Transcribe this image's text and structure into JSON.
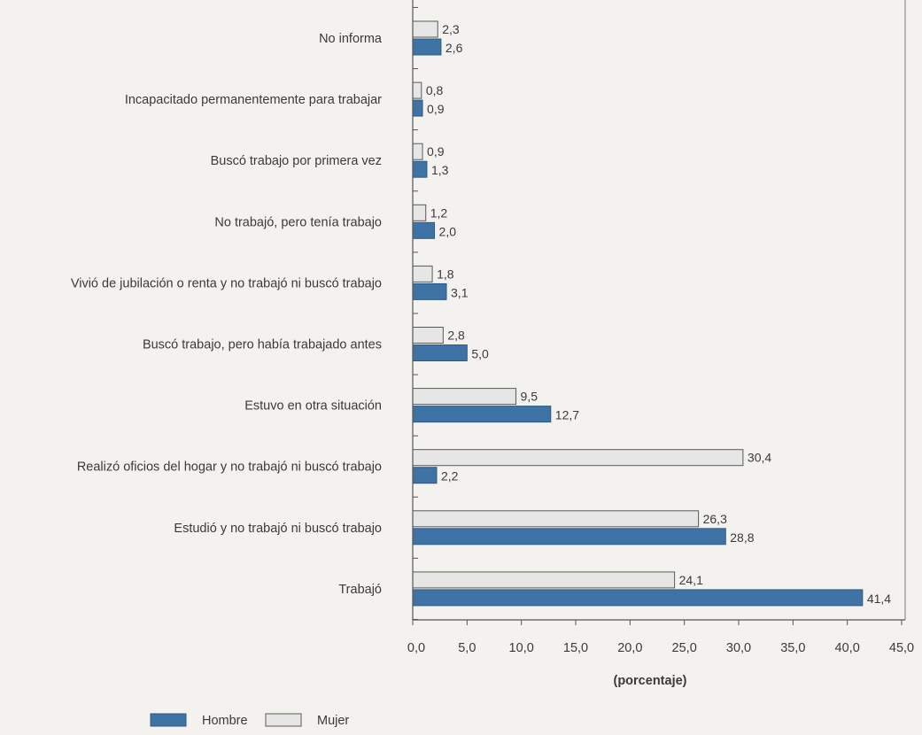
{
  "chart_data": {
    "type": "bar",
    "orientation": "horizontal",
    "title": "",
    "xlabel": "(porcentaje)",
    "ylabel": "",
    "xlim": [
      0,
      45
    ],
    "x_ticks": [
      "0,0",
      "5,0",
      "10,0",
      "15,0",
      "20,0",
      "25,0",
      "30,0",
      "35,0",
      "40,0",
      "45,0"
    ],
    "grid": false,
    "legend_position": "bottom-left",
    "categories": [
      "No informa",
      "Incapacitado permanentemente para trabajar",
      "Buscó trabajo por primera vez",
      "No trabajó, pero tenía trabajo",
      "Vivió de jubilación o renta y no trabajó ni buscó trabajo",
      "Buscó trabajo, pero había trabajado antes",
      "Estuvo en otra situación",
      "Realizó oficios del hogar y no trabajó ni buscó trabajo",
      "Estudió y no trabajó ni buscó trabajo",
      "Trabajó"
    ],
    "series": [
      {
        "name": "Mujer",
        "color": "#e6e6e6",
        "values": [
          2.3,
          0.8,
          0.9,
          1.2,
          1.8,
          2.8,
          9.5,
          30.4,
          26.3,
          24.1
        ],
        "labels": [
          "2,3",
          "0,8",
          "0,9",
          "1,2",
          "1,8",
          "2,8",
          "9,5",
          "30,4",
          "26,3",
          "24,1"
        ]
      },
      {
        "name": "Hombre",
        "color": "#3f73a6",
        "values": [
          2.6,
          0.9,
          1.3,
          2.0,
          3.1,
          5.0,
          12.7,
          2.2,
          28.8,
          41.4
        ],
        "labels": [
          "2,6",
          "0,9",
          "1,3",
          "2,0",
          "3,1",
          "5,0",
          "12,7",
          "2,2",
          "28,8",
          "41,4"
        ]
      }
    ],
    "legend": [
      {
        "name": "Hombre",
        "color": "#3f73a6"
      },
      {
        "name": "Mujer",
        "color": "#e6e6e6"
      }
    ]
  }
}
